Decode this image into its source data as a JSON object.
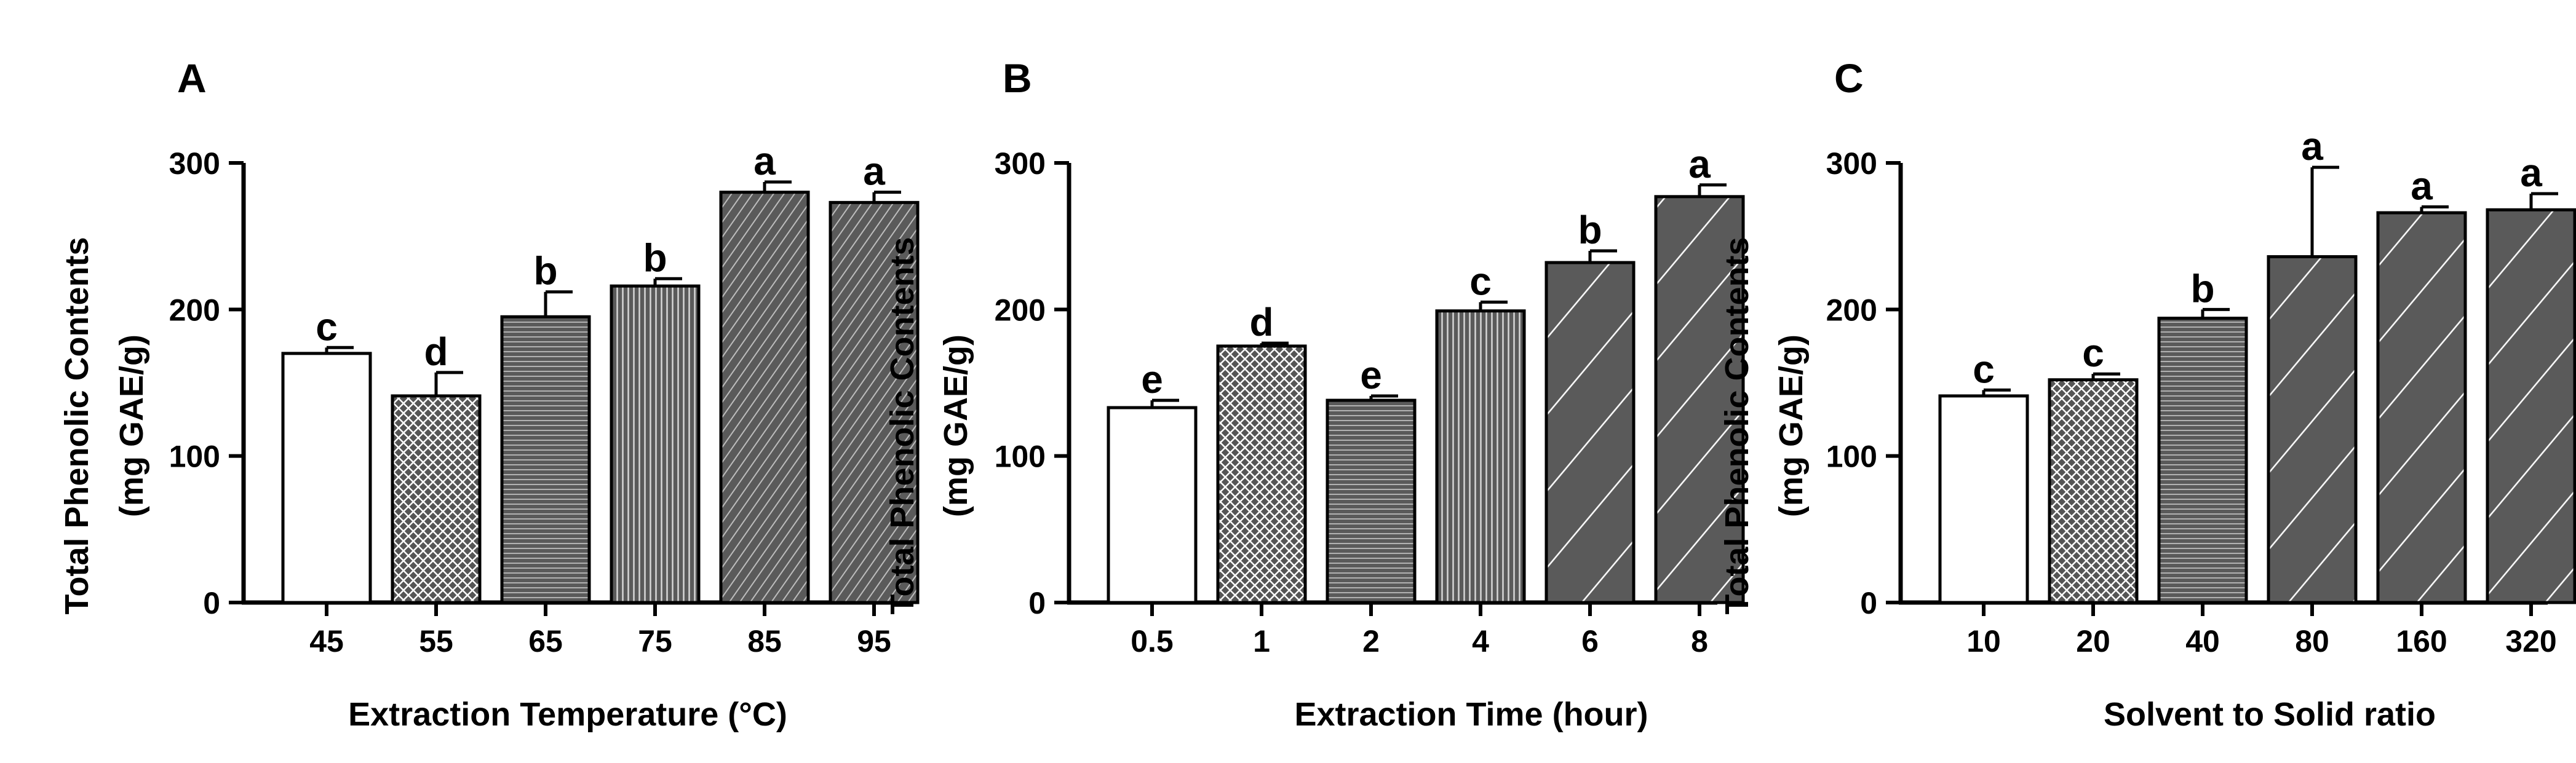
{
  "colors": {
    "bar_dark": "#5a5a5a",
    "bar_light": "#ffffff",
    "ink": "#000000"
  },
  "chart_data": [
    {
      "panel": "A",
      "type": "bar",
      "ylabel_lines": [
        "Total Phenolic Contents",
        "(mg GAE/g)"
      ],
      "xlabel": "Extraction Temperature (°C)",
      "ylim": [
        0,
        300
      ],
      "yticks": [
        "0",
        "100",
        "200",
        "300"
      ],
      "categories": [
        "45",
        "55",
        "65",
        "75",
        "85",
        "95"
      ],
      "values": [
        170,
        141,
        195,
        216,
        280,
        273
      ],
      "errors": [
        4,
        16,
        17,
        5,
        7,
        7
      ],
      "letters": [
        "c",
        "d",
        "b",
        "b",
        "a",
        "a"
      ],
      "patterns": [
        "none",
        "cross",
        "hlines",
        "vlines",
        "diag-dense",
        "diag-dense"
      ]
    },
    {
      "panel": "B",
      "type": "bar",
      "ylabel_lines": [
        "Total Phenolic Contents",
        "(mg GAE/g)"
      ],
      "xlabel": "Extraction Time (hour)",
      "ylim": [
        0,
        300
      ],
      "yticks": [
        "0",
        "100",
        "200",
        "300"
      ],
      "categories": [
        "0.5",
        "1",
        "2",
        "4",
        "6",
        "8"
      ],
      "values": [
        133,
        175,
        138,
        199,
        232,
        277
      ],
      "errors": [
        5,
        2,
        3,
        6,
        8,
        8
      ],
      "letters": [
        "e",
        "d",
        "e",
        "c",
        "b",
        "a"
      ],
      "patterns": [
        "none",
        "cross",
        "hlines",
        "vlines",
        "diag-sparse",
        "diag-sparse"
      ]
    },
    {
      "panel": "C",
      "type": "bar",
      "ylabel_lines": [
        "Total Phenolic Contents",
        "(mg GAE/g)"
      ],
      "xlabel": "Solvent to Solid ratio",
      "ylim": [
        0,
        300
      ],
      "yticks": [
        "0",
        "100",
        "200",
        "300"
      ],
      "categories": [
        "10",
        "20",
        "40",
        "80",
        "160",
        "320"
      ],
      "values": [
        141,
        152,
        194,
        236,
        266,
        268
      ],
      "errors": [
        4,
        4,
        6,
        61,
        4,
        11
      ],
      "letters": [
        "c",
        "c",
        "b",
        "a",
        "a",
        "a"
      ],
      "patterns": [
        "none",
        "cross",
        "hlines",
        "diag-sparse",
        "diag-sparse",
        "diag-sparse"
      ]
    }
  ]
}
